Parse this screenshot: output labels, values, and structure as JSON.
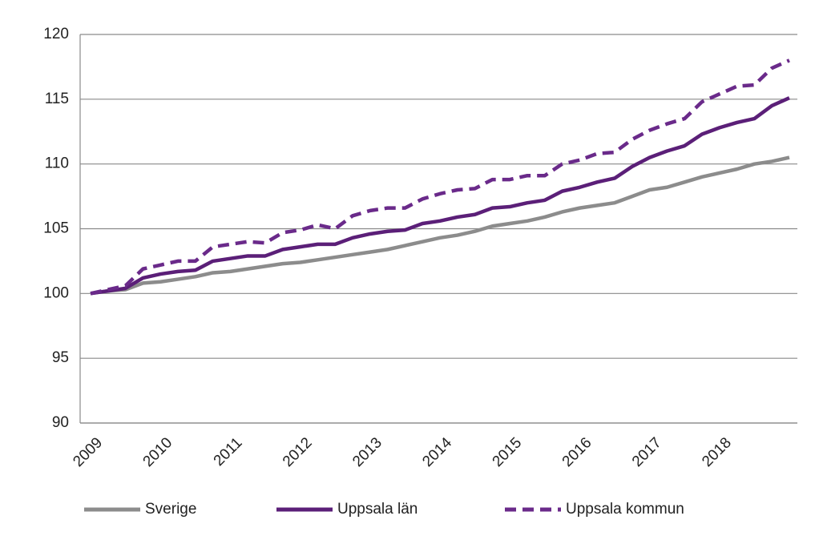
{
  "chart_data": {
    "type": "line",
    "categories": [
      "2009",
      null,
      null,
      null,
      "2010",
      null,
      null,
      null,
      "2011",
      null,
      null,
      null,
      "2012",
      null,
      null,
      null,
      "2013",
      null,
      null,
      null,
      "2014",
      null,
      null,
      null,
      "2015",
      null,
      null,
      null,
      "2016",
      null,
      null,
      null,
      "2017",
      null,
      null,
      null,
      "2018",
      null,
      null,
      null,
      null
    ],
    "series": [
      {
        "name": "Sverige",
        "color": "#8c8c8c",
        "style": "solid",
        "values": [
          100,
          100.2,
          100.3,
          100.8,
          100.9,
          101.1,
          101.3,
          101.6,
          101.7,
          101.9,
          102.1,
          102.3,
          102.4,
          102.6,
          102.8,
          103.0,
          103.2,
          103.4,
          103.7,
          104.0,
          104.3,
          104.5,
          104.8,
          105.2,
          105.4,
          105.6,
          105.9,
          106.3,
          106.6,
          106.8,
          107.0,
          107.5,
          108.0,
          108.2,
          108.6,
          109.0,
          109.3,
          109.6,
          110.0,
          110.2,
          110.5
        ]
      },
      {
        "name": "Uppsala län",
        "color": "#5b1f78",
        "style": "solid",
        "values": [
          100,
          100.2,
          100.4,
          101.2,
          101.5,
          101.7,
          101.8,
          102.5,
          102.7,
          102.9,
          102.9,
          103.4,
          103.6,
          103.8,
          103.8,
          104.3,
          104.6,
          104.8,
          104.9,
          105.4,
          105.6,
          105.9,
          106.1,
          106.6,
          106.7,
          107.0,
          107.2,
          107.9,
          108.2,
          108.6,
          108.9,
          109.8,
          110.5,
          111.0,
          111.4,
          112.3,
          112.8,
          113.2,
          113.5,
          114.5,
          115.1
        ]
      },
      {
        "name": "Uppsala kommun",
        "color": "#6a2a8a",
        "style": "dashed",
        "values": [
          100,
          100.3,
          100.6,
          101.9,
          102.2,
          102.5,
          102.5,
          103.6,
          103.8,
          104.0,
          103.9,
          104.7,
          104.9,
          105.3,
          105.0,
          106.0,
          106.4,
          106.6,
          106.6,
          107.3,
          107.7,
          108.0,
          108.1,
          108.8,
          108.8,
          109.1,
          109.1,
          110.0,
          110.3,
          110.8,
          110.9,
          111.9,
          112.6,
          113.1,
          113.5,
          114.8,
          115.4,
          116.0,
          116.1,
          117.4,
          118.0
        ]
      }
    ],
    "ylim": [
      90,
      120
    ],
    "yticks": [
      90,
      95,
      100,
      105,
      110,
      115,
      120
    ],
    "grid": true,
    "legend": "bottom"
  }
}
